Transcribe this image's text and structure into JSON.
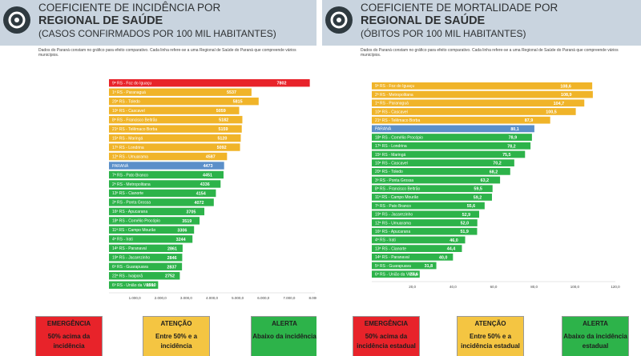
{
  "left": {
    "title1": "COEFICIENTE DE INCIDÊNCIA POR",
    "title2": "REGIONAL DE SAÚDE",
    "title3": "(CASOS CONFIRMADOS POR 100 MIL HABITANTES)",
    "note": "Dados do Paraná constam no gráfico para efeito comparativo. Cada linha refere-se a uma Regional de Saúde do Paraná que compreende vários municípios.",
    "boxes": [
      {
        "title": "EMERGÊNCIA",
        "desc": "50% acima da incidência",
        "color": "#e8232a"
      },
      {
        "title": "ATENÇÃO",
        "desc": "Entre 50% e a incidência",
        "color": "#f4c542"
      },
      {
        "title": "ALERTA",
        "desc": "Abaixo da incidência",
        "color": "#2db34a"
      }
    ]
  },
  "right": {
    "title1": "COEFICIENTE DE MORTALIDADE POR",
    "title2": "REGIONAL DE SAÚDE",
    "title3": "(ÓBITOS POR 100 MIL HABITANTES)",
    "note": "Dados do Paraná constam no gráfico para efeito comparativo. Cada linha refere-se a uma Regional de Saúde do Paraná que compreende vários municípios.",
    "boxes": [
      {
        "title": "EMERGÊNCIA",
        "desc": "50% acima da incidência estadual",
        "color": "#e8232a"
      },
      {
        "title": "ATENÇÃO",
        "desc": "Entre 50% e a incidência estadual",
        "color": "#f4c542"
      },
      {
        "title": "ALERTA",
        "desc": "Abaixo da incidência estadual",
        "color": "#2db34a"
      }
    ]
  },
  "chart_data": [
    {
      "type": "bar",
      "orientation": "horizontal",
      "title": "COEFICIENTE DE INCIDÊNCIA POR REGIONAL DE SAÚDE",
      "subtitle": "(CASOS CONFIRMADOS POR 100 MIL HABITANTES)",
      "xlim": [
        0,
        8000
      ],
      "ticks": [
        "1.000,0",
        "2.000,0",
        "3.000,0",
        "4.000,0",
        "5.000,0",
        "6.000,0",
        "7.000,0",
        "8.000,0"
      ],
      "tick_values": [
        1000,
        2000,
        3000,
        4000,
        5000,
        6000,
        7000,
        8000
      ],
      "categories": [
        "9ª RS - Foz do Iguaçu",
        "1ª RS - Paranaguá",
        "20ª RS - Toledo",
        "10ª RS - Cascavel",
        "8ª RS - Francisco Beltrão",
        "21ª RS - Telêmaco Borba",
        "15ª RS - Maringá",
        "17ª RS - Londrina",
        "12ª RS - Umuarama",
        "PARANÁ",
        "7ª RS - Pato Branco",
        "2ª RS - Metropolitana",
        "13ª RS - Cianorte",
        "3ª RS - Ponta Grossa",
        "16ª RS - Apucarana",
        "18ª RS - Cornélio Procópio",
        "11ª RS - Campo Mourão",
        "4ª RS - Irati",
        "14ª RS - Paranavaí",
        "19ª RS - Jacarezinho",
        "6ª RS - Guarapuava",
        "22ª RS - Ivaiporã",
        "6ª RS - União da Vitória"
      ],
      "values": [
        7802,
        5537,
        5815,
        5059,
        5182,
        5159,
        5120,
        5092,
        4587,
        4473,
        4451,
        4336,
        4154,
        4072,
        3705,
        3519,
        3306,
        3244,
        2861,
        2846,
        2837,
        2752,
        1910
      ],
      "labels": [
        "7802",
        "5537",
        "5815",
        "5059",
        "5182",
        "5159",
        "5120",
        "5092",
        "4587",
        "4473",
        "4451",
        "4336",
        "4154",
        "4072",
        "3705",
        "3519",
        "3306",
        "3244",
        "2861",
        "2846",
        "2837",
        "2752",
        "1910"
      ],
      "colors": [
        "#e8232a",
        "#f0b429",
        "#f0b429",
        "#f0b429",
        "#f0b429",
        "#f0b429",
        "#f0b429",
        "#f0b429",
        "#f0b429",
        "#5b8fc9",
        "#2db34a",
        "#2db34a",
        "#2db34a",
        "#2db34a",
        "#2db34a",
        "#2db34a",
        "#2db34a",
        "#2db34a",
        "#2db34a",
        "#2db34a",
        "#2db34a",
        "#2db34a",
        "#2db34a"
      ]
    },
    {
      "type": "bar",
      "orientation": "horizontal",
      "title": "COEFICIENTE DE MORTALIDADE POR REGIONAL DE SAÚDE",
      "subtitle": "(ÓBITOS POR 100 MIL HABITANTES)",
      "xlim": [
        0,
        120
      ],
      "ticks": [
        "20,0",
        "40,0",
        "60,0",
        "80,0",
        "100,0",
        "120,0"
      ],
      "tick_values": [
        20,
        40,
        60,
        80,
        100,
        120
      ],
      "categories": [
        "9ª RS - Foz do Iguaçu",
        "2ª RS - Metropolitana",
        "1ª RS - Paranaguá",
        "10ª RS - Cascavel",
        "21ª RS - Telêmaco Borba",
        "PARANÁ",
        "18ª RS - Cornélio Procópio",
        "17ª RS - Londrina",
        "15ª RS - Maringá",
        "10ª RS - Cascavel",
        "20ª RS - Toledo",
        "3ª RS - Ponta Grossa",
        "8ª RS - Francisco Beltrão",
        "11ª RS - Campo Mourão",
        "7ª RS - Pato Branco",
        "19ª RS - Jacarezinho",
        "12ª RS - Umuarama",
        "16ª RS - Apucarana",
        "4ª RS - Irati",
        "13ª RS - Cianorte",
        "14ª RS - Paranavaí",
        "5ª RS - Guarapuava",
        "6ª RS - União da Vitória"
      ],
      "values": [
        108.6,
        108.9,
        104.7,
        100.5,
        87.9,
        80.1,
        78.9,
        78.2,
        75.5,
        70.2,
        68.2,
        63.2,
        59.5,
        59.2,
        55.6,
        52.9,
        52.0,
        51.9,
        46.0,
        44.4,
        40.0,
        31.8,
        23.6
      ],
      "labels": [
        "108,6",
        "108,9",
        "104,7",
        "100,5",
        "87,9",
        "80,1",
        "78,9",
        "78,2",
        "75,5",
        "70,2",
        "68,2",
        "63,2",
        "59,5",
        "59,2",
        "55,6",
        "52,9",
        "52,0",
        "51,9",
        "46,0",
        "44,4",
        "40,0",
        "31,8",
        "23,6"
      ],
      "colors": [
        "#f0b429",
        "#f0b429",
        "#f0b429",
        "#f0b429",
        "#f0b429",
        "#5b8fc9",
        "#2db34a",
        "#2db34a",
        "#2db34a",
        "#2db34a",
        "#2db34a",
        "#2db34a",
        "#2db34a",
        "#2db34a",
        "#2db34a",
        "#2db34a",
        "#2db34a",
        "#2db34a",
        "#2db34a",
        "#2db34a",
        "#2db34a",
        "#2db34a",
        "#2db34a"
      ]
    }
  ]
}
